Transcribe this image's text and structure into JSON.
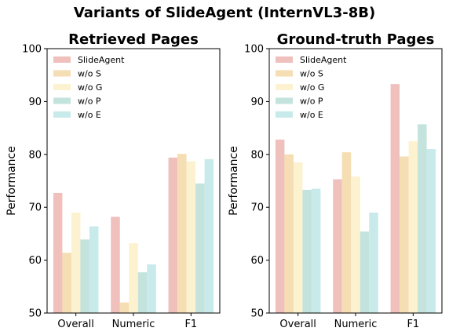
{
  "title": "Variants of SlideAgent (InternVL3-8B)",
  "colors": {
    "SlideAgent": "#f0c0bc",
    "w/o S": "#f5deb3",
    "w/o G": "#fcf2cf",
    "w/o P": "#c4e3dc",
    "w/o E": "#c8eaea"
  },
  "chart_data": [
    {
      "type": "bar",
      "title": "Retrieved Pages",
      "ylabel": "Performance",
      "xlabel": "",
      "ylim": [
        50,
        100
      ],
      "yticks": [
        50,
        60,
        70,
        80,
        90,
        100
      ],
      "categories": [
        "Overall",
        "Numeric",
        "F1"
      ],
      "legend": "top-left",
      "grid": false,
      "series": [
        {
          "name": "SlideAgent",
          "values": [
            72.7,
            68.2,
            79.4
          ]
        },
        {
          "name": "w/o S",
          "values": [
            61.4,
            52.0,
            80.1
          ]
        },
        {
          "name": "w/o G",
          "values": [
            69.0,
            63.2,
            78.7
          ]
        },
        {
          "name": "w/o P",
          "values": [
            63.9,
            57.7,
            74.5
          ]
        },
        {
          "name": "w/o E",
          "values": [
            66.4,
            59.2,
            79.1
          ]
        }
      ]
    },
    {
      "type": "bar",
      "title": "Ground-truth Pages",
      "ylabel": "Performance",
      "xlabel": "",
      "ylim": [
        50,
        100
      ],
      "yticks": [
        50,
        60,
        70,
        80,
        90,
        100
      ],
      "categories": [
        "Overall",
        "Numeric",
        "F1"
      ],
      "legend": "top-left",
      "grid": false,
      "series": [
        {
          "name": "SlideAgent",
          "values": [
            82.8,
            75.3,
            93.3
          ]
        },
        {
          "name": "w/o S",
          "values": [
            80.0,
            80.4,
            79.6
          ]
        },
        {
          "name": "w/o G",
          "values": [
            78.5,
            75.8,
            82.5
          ]
        },
        {
          "name": "w/o P",
          "values": [
            73.3,
            65.4,
            85.7
          ]
        },
        {
          "name": "w/o E",
          "values": [
            73.5,
            69.0,
            81.0
          ]
        }
      ]
    }
  ]
}
